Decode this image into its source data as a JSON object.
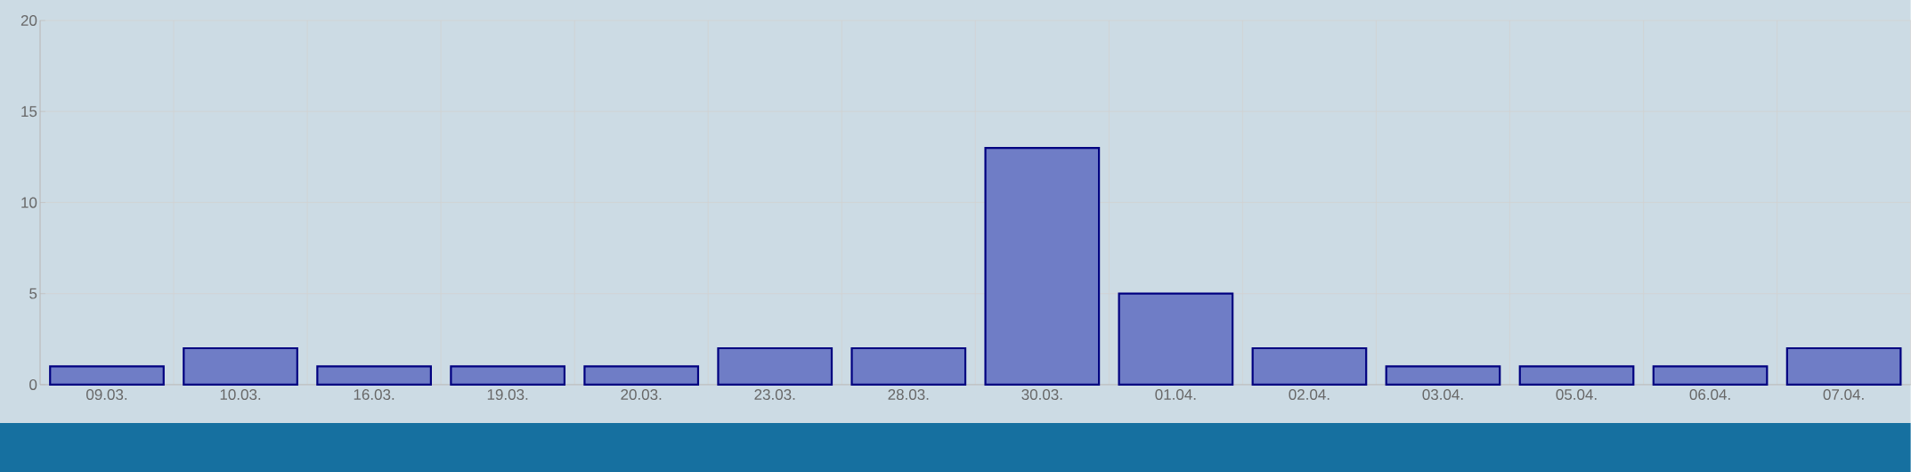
{
  "chart_data": {
    "type": "bar",
    "categories": [
      "09.03.",
      "10.03.",
      "16.03.",
      "19.03.",
      "20.03.",
      "23.03.",
      "28.03.",
      "30.03.",
      "01.04.",
      "02.04.",
      "03.04.",
      "05.04.",
      "06.04.",
      "07.04."
    ],
    "values": [
      1,
      2,
      1,
      1,
      1,
      2,
      2,
      13,
      5,
      2,
      1,
      1,
      1,
      2
    ],
    "color": "#6f7dc6",
    "ylim": [
      0,
      20
    ],
    "yticks": [
      0,
      5,
      10,
      15,
      20
    ],
    "grid": true
  }
}
